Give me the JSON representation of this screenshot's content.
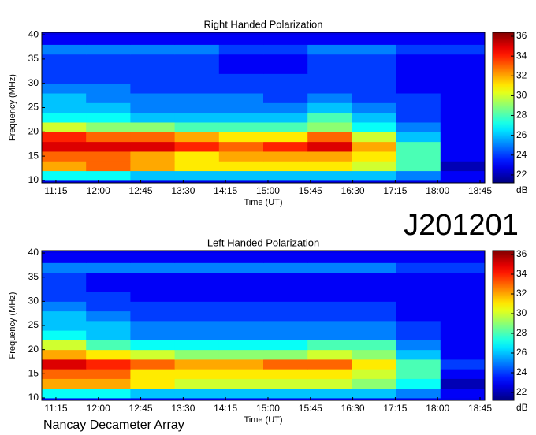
{
  "page": {
    "label": "J201201",
    "footer": "Nancay Decameter Array"
  },
  "chart_data": [
    {
      "type": "heatmap",
      "title": "Right Handed Polarization",
      "xlabel": "Time (UT)",
      "ylabel": "Frequency (MHz)",
      "colorbar_label": "dB",
      "colormap": "jet",
      "xlim": [
        660,
        1130
      ],
      "ylim": [
        9.5,
        40.5
      ],
      "zlim": [
        21.2,
        36.4
      ],
      "xticks": [
        {
          "value": 675,
          "label": "11:15"
        },
        {
          "value": 720,
          "label": "12:00"
        },
        {
          "value": 765,
          "label": "12:45"
        },
        {
          "value": 810,
          "label": "13:30"
        },
        {
          "value": 855,
          "label": "14:15"
        },
        {
          "value": 900,
          "label": "15:00"
        },
        {
          "value": 945,
          "label": "15:45"
        },
        {
          "value": 990,
          "label": "16:30"
        },
        {
          "value": 1035,
          "label": "17:15"
        },
        {
          "value": 1080,
          "label": "18:00"
        },
        {
          "value": 1125,
          "label": "18:45"
        }
      ],
      "yticks": [
        10,
        15,
        20,
        25,
        30,
        35,
        40
      ],
      "zticks": [
        22,
        24,
        26,
        28,
        30,
        32,
        34,
        36
      ],
      "x": [
        660,
        707,
        754,
        801,
        848,
        895,
        942,
        989,
        1036,
        1083,
        1130
      ],
      "y": [
        10,
        12,
        14,
        16,
        18,
        20,
        22,
        24,
        26,
        28,
        30,
        32,
        34,
        36,
        38,
        40
      ],
      "values": [
        [
          27,
          27,
          26,
          26,
          26,
          26,
          26,
          26,
          25,
          23
        ],
        [
          32,
          33,
          32,
          31,
          31,
          31,
          31,
          30,
          28,
          22
        ],
        [
          33,
          33,
          32,
          31,
          32,
          32,
          32,
          31,
          28,
          23
        ],
        [
          35,
          35,
          35,
          34,
          33,
          34,
          35,
          32,
          28,
          23
        ],
        [
          34,
          33,
          33,
          32,
          31,
          31,
          33,
          30,
          26,
          23
        ],
        [
          30,
          29,
          29,
          28,
          28,
          28,
          29,
          27,
          25,
          23
        ],
        [
          27,
          27,
          26,
          26,
          26,
          26,
          28,
          26,
          24,
          23
        ],
        [
          26,
          26,
          25,
          25,
          25,
          25,
          26,
          25,
          24,
          23
        ],
        [
          26,
          25,
          25,
          25,
          25,
          24,
          25,
          24,
          24,
          23
        ],
        [
          25,
          25,
          24,
          24,
          24,
          24,
          24,
          24,
          23,
          23
        ],
        [
          24,
          24,
          24,
          24,
          24,
          24,
          24,
          24,
          23,
          23
        ],
        [
          24,
          24,
          24,
          24,
          23,
          23,
          24,
          24,
          23,
          23
        ],
        [
          24,
          24,
          24,
          24,
          23,
          23,
          24,
          24,
          23,
          23
        ],
        [
          25,
          25,
          25,
          25,
          24,
          24,
          25,
          25,
          24,
          24
        ],
        [
          23,
          23,
          23,
          23,
          23,
          23,
          23,
          23,
          23,
          23
        ]
      ]
    },
    {
      "type": "heatmap",
      "title": "Left Handed Polarization",
      "xlabel": "Time (UT)",
      "ylabel": "Frequency (MHz)",
      "colorbar_label": "dB",
      "colormap": "jet",
      "xlim": [
        660,
        1130
      ],
      "ylim": [
        9.5,
        40.5
      ],
      "zlim": [
        21.2,
        36.4
      ],
      "xticks": [
        {
          "value": 675,
          "label": "11:15"
        },
        {
          "value": 720,
          "label": "12:00"
        },
        {
          "value": 765,
          "label": "12:45"
        },
        {
          "value": 810,
          "label": "13:30"
        },
        {
          "value": 855,
          "label": "14:15"
        },
        {
          "value": 900,
          "label": "15:00"
        },
        {
          "value": 945,
          "label": "15:45"
        },
        {
          "value": 990,
          "label": "16:30"
        },
        {
          "value": 1035,
          "label": "17:15"
        },
        {
          "value": 1080,
          "label": "18:00"
        },
        {
          "value": 1125,
          "label": "18:45"
        }
      ],
      "yticks": [
        10,
        15,
        20,
        25,
        30,
        35,
        40
      ],
      "zticks": [
        22,
        24,
        26,
        28,
        30,
        32,
        34,
        36
      ],
      "x": [
        660,
        707,
        754,
        801,
        848,
        895,
        942,
        989,
        1036,
        1083,
        1130
      ],
      "y": [
        10,
        12,
        14,
        16,
        18,
        20,
        22,
        24,
        26,
        28,
        30,
        32,
        34,
        36,
        38,
        40
      ],
      "values": [
        [
          27,
          27,
          26,
          26,
          26,
          26,
          26,
          26,
          25,
          23
        ],
        [
          32,
          32,
          31,
          30,
          30,
          30,
          30,
          29,
          27,
          22
        ],
        [
          33,
          33,
          31,
          31,
          31,
          31,
          31,
          30,
          28,
          23
        ],
        [
          35,
          34,
          33,
          32,
          32,
          33,
          33,
          31,
          28,
          24
        ],
        [
          32,
          31,
          30,
          29,
          29,
          29,
          30,
          29,
          26,
          23
        ],
        [
          30,
          28,
          27,
          27,
          27,
          27,
          28,
          28,
          25,
          23
        ],
        [
          27,
          26,
          25,
          25,
          25,
          25,
          25,
          25,
          24,
          23
        ],
        [
          26,
          26,
          25,
          25,
          25,
          25,
          25,
          25,
          24,
          23
        ],
        [
          26,
          25,
          24,
          24,
          24,
          24,
          24,
          24,
          23,
          23
        ],
        [
          25,
          24,
          24,
          24,
          24,
          24,
          24,
          24,
          23,
          23
        ],
        [
          24,
          24,
          23,
          23,
          23,
          23,
          23,
          23,
          23,
          23
        ],
        [
          24,
          23,
          23,
          23,
          23,
          23,
          23,
          23,
          23,
          23
        ],
        [
          24,
          23,
          23,
          23,
          23,
          23,
          23,
          23,
          23,
          23
        ],
        [
          25,
          25,
          25,
          25,
          25,
          25,
          25,
          25,
          24,
          24
        ],
        [
          23,
          23,
          23,
          23,
          23,
          23,
          23,
          23,
          23,
          23
        ]
      ]
    }
  ]
}
